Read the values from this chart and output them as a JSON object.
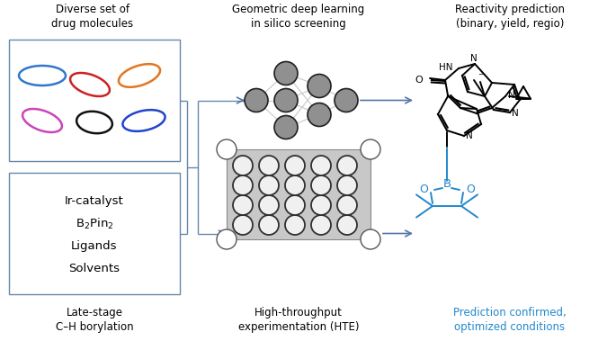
{
  "bg_color": "#ffffff",
  "box_edge_color": "#6688aa",
  "box_edge_width": 1.0,
  "arrow_color": "#5577aa",
  "node_fill": "#909090",
  "node_edge": "#202020",
  "conn_color": "#c8c8c8",
  "hte_bg": "#c8c8c8",
  "hte_edge": "#888888",
  "well_fill": "#f0f0f0",
  "well_edge": "#303030",
  "black": "#000000",
  "blue": "#2288cc",
  "pill_blue": "#3377cc",
  "pill_red": "#cc2222",
  "pill_orange": "#e07722",
  "pill_pink": "#cc44bb",
  "pill_dark_blue": "#2244cc",
  "pill_black": "#111111",
  "col1_title": "Diverse set of\ndrug molecules",
  "col2_title": "Geometric deep learning\nin silico screening",
  "col3_title": "Reactivity prediction\n(binary, yield, regio)",
  "reagents": [
    "Ir-catalyst",
    "B$_2$Pin$_2$",
    "Ligands",
    "Solvents"
  ],
  "label_borylation": "Late-stage\nC–H borylation",
  "label_hte": "High-throughput\nexperimentation (HTE)",
  "label_prediction": "Prediction confirmed,\noptimized conditions",
  "figsize": [
    6.85,
    3.79
  ],
  "dpi": 100
}
